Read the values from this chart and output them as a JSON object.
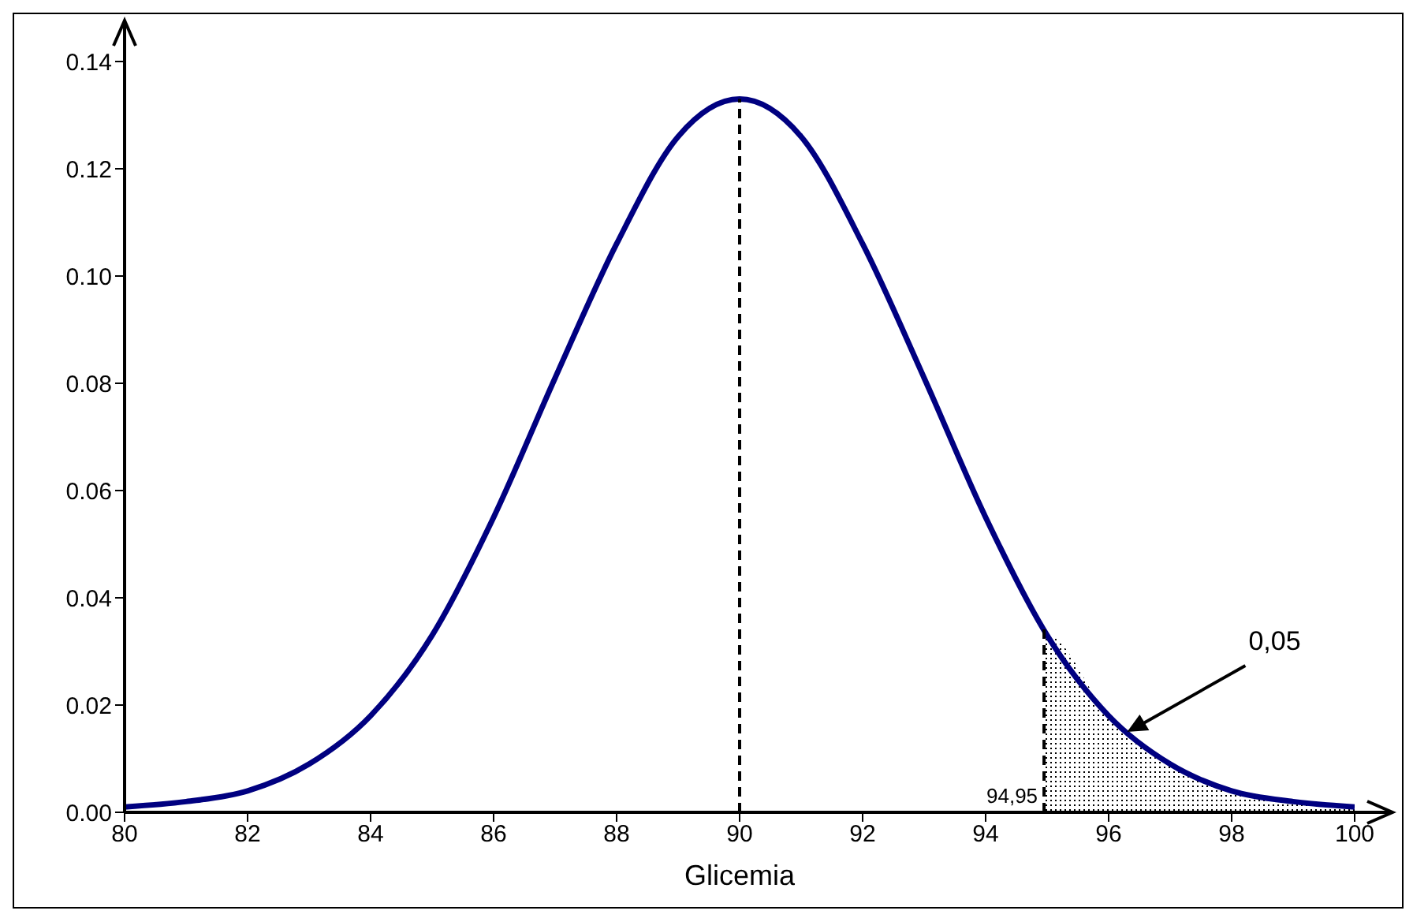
{
  "chart_data": {
    "type": "line",
    "xlabel": "Glicemia",
    "xlim": [
      80,
      100
    ],
    "xticks": [
      80,
      82,
      84,
      86,
      88,
      90,
      92,
      94,
      96,
      98,
      100
    ],
    "ylim": [
      0,
      0.14
    ],
    "yticks": [
      {
        "value": 0,
        "label": "0.00"
      },
      {
        "value": 0.02,
        "label": "0.02"
      },
      {
        "value": 0.04,
        "label": "0.04"
      },
      {
        "value": 0.06,
        "label": "0.06"
      },
      {
        "value": 0.08,
        "label": "0.08"
      },
      {
        "value": 0.1,
        "label": "0.10"
      },
      {
        "value": 0.12,
        "label": "0.12"
      },
      {
        "value": 0.14,
        "label": "0.14"
      }
    ],
    "series": [
      {
        "color": "#000080",
        "x": [
          80,
          81,
          82,
          83,
          84,
          85,
          86,
          87,
          88,
          89,
          90,
          91,
          92,
          93,
          94,
          95,
          96,
          97,
          98,
          99,
          100
        ],
        "values": [
          0.001,
          0.002,
          0.004,
          0.009,
          0.018,
          0.033,
          0.055,
          0.081,
          0.106,
          0.126,
          0.133,
          0.126,
          0.106,
          0.081,
          0.055,
          0.033,
          0.018,
          0.009,
          0.004,
          0.002,
          0.001
        ]
      },
      {
        "type": "area",
        "color": "#000000",
        "x": [
          94.95,
          95,
          96,
          97,
          98,
          99,
          100
        ],
        "values": [
          0.033,
          0.033,
          0.018,
          0.009,
          0.004,
          0.002,
          0.001
        ]
      }
    ],
    "ref_lines": [
      {
        "axis": "x",
        "value": 90,
        "label": null,
        "line_style": "dashed",
        "color": "#000000"
      },
      {
        "axis": "x",
        "value": 94.95,
        "label": "94,95",
        "line_style": "dashed",
        "color": "#000000"
      }
    ],
    "annotations": [
      {
        "text": "0,05",
        "x": 96.3,
        "y": 0.015
      }
    ],
    "marker": "none",
    "line_style": "solid"
  }
}
